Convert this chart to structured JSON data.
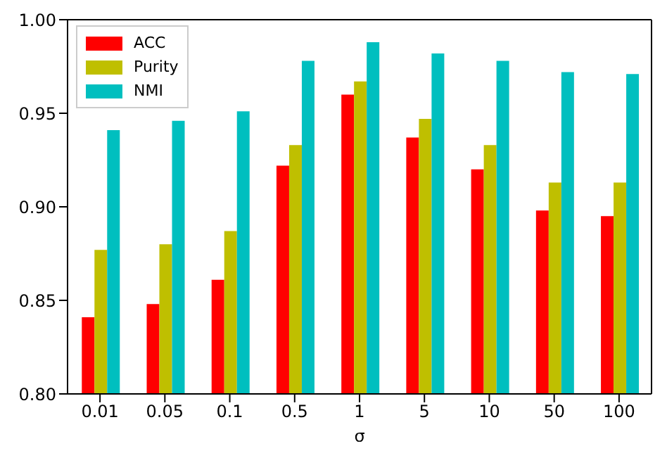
{
  "chart_data": {
    "type": "bar",
    "xlabel": "σ",
    "categories": [
      "0.01",
      "0.05",
      "0.1",
      "0.5",
      "1",
      "5",
      "10",
      "50",
      "100"
    ],
    "series": [
      {
        "name": "ACC",
        "color": "#ff0000",
        "values": [
          0.841,
          0.848,
          0.861,
          0.922,
          0.96,
          0.937,
          0.92,
          0.898,
          0.895
        ]
      },
      {
        "name": "Purity",
        "color": "#bfbf00",
        "values": [
          0.877,
          0.88,
          0.887,
          0.933,
          0.967,
          0.947,
          0.933,
          0.913,
          0.913
        ]
      },
      {
        "name": "NMI",
        "color": "#00bfbf",
        "values": [
          0.941,
          0.946,
          0.951,
          0.978,
          0.988,
          0.982,
          0.978,
          0.972,
          0.971
        ]
      }
    ],
    "ylim": [
      0.8,
      1.0
    ],
    "yticks": [
      {
        "value": 0.8,
        "label": "0.80"
      },
      {
        "value": 0.85,
        "label": "0.85"
      },
      {
        "value": 0.9,
        "label": "0.90"
      },
      {
        "value": 0.95,
        "label": "0.95"
      },
      {
        "value": 1.0,
        "label": "1.00"
      }
    ],
    "grid": false,
    "legend": "top left"
  }
}
